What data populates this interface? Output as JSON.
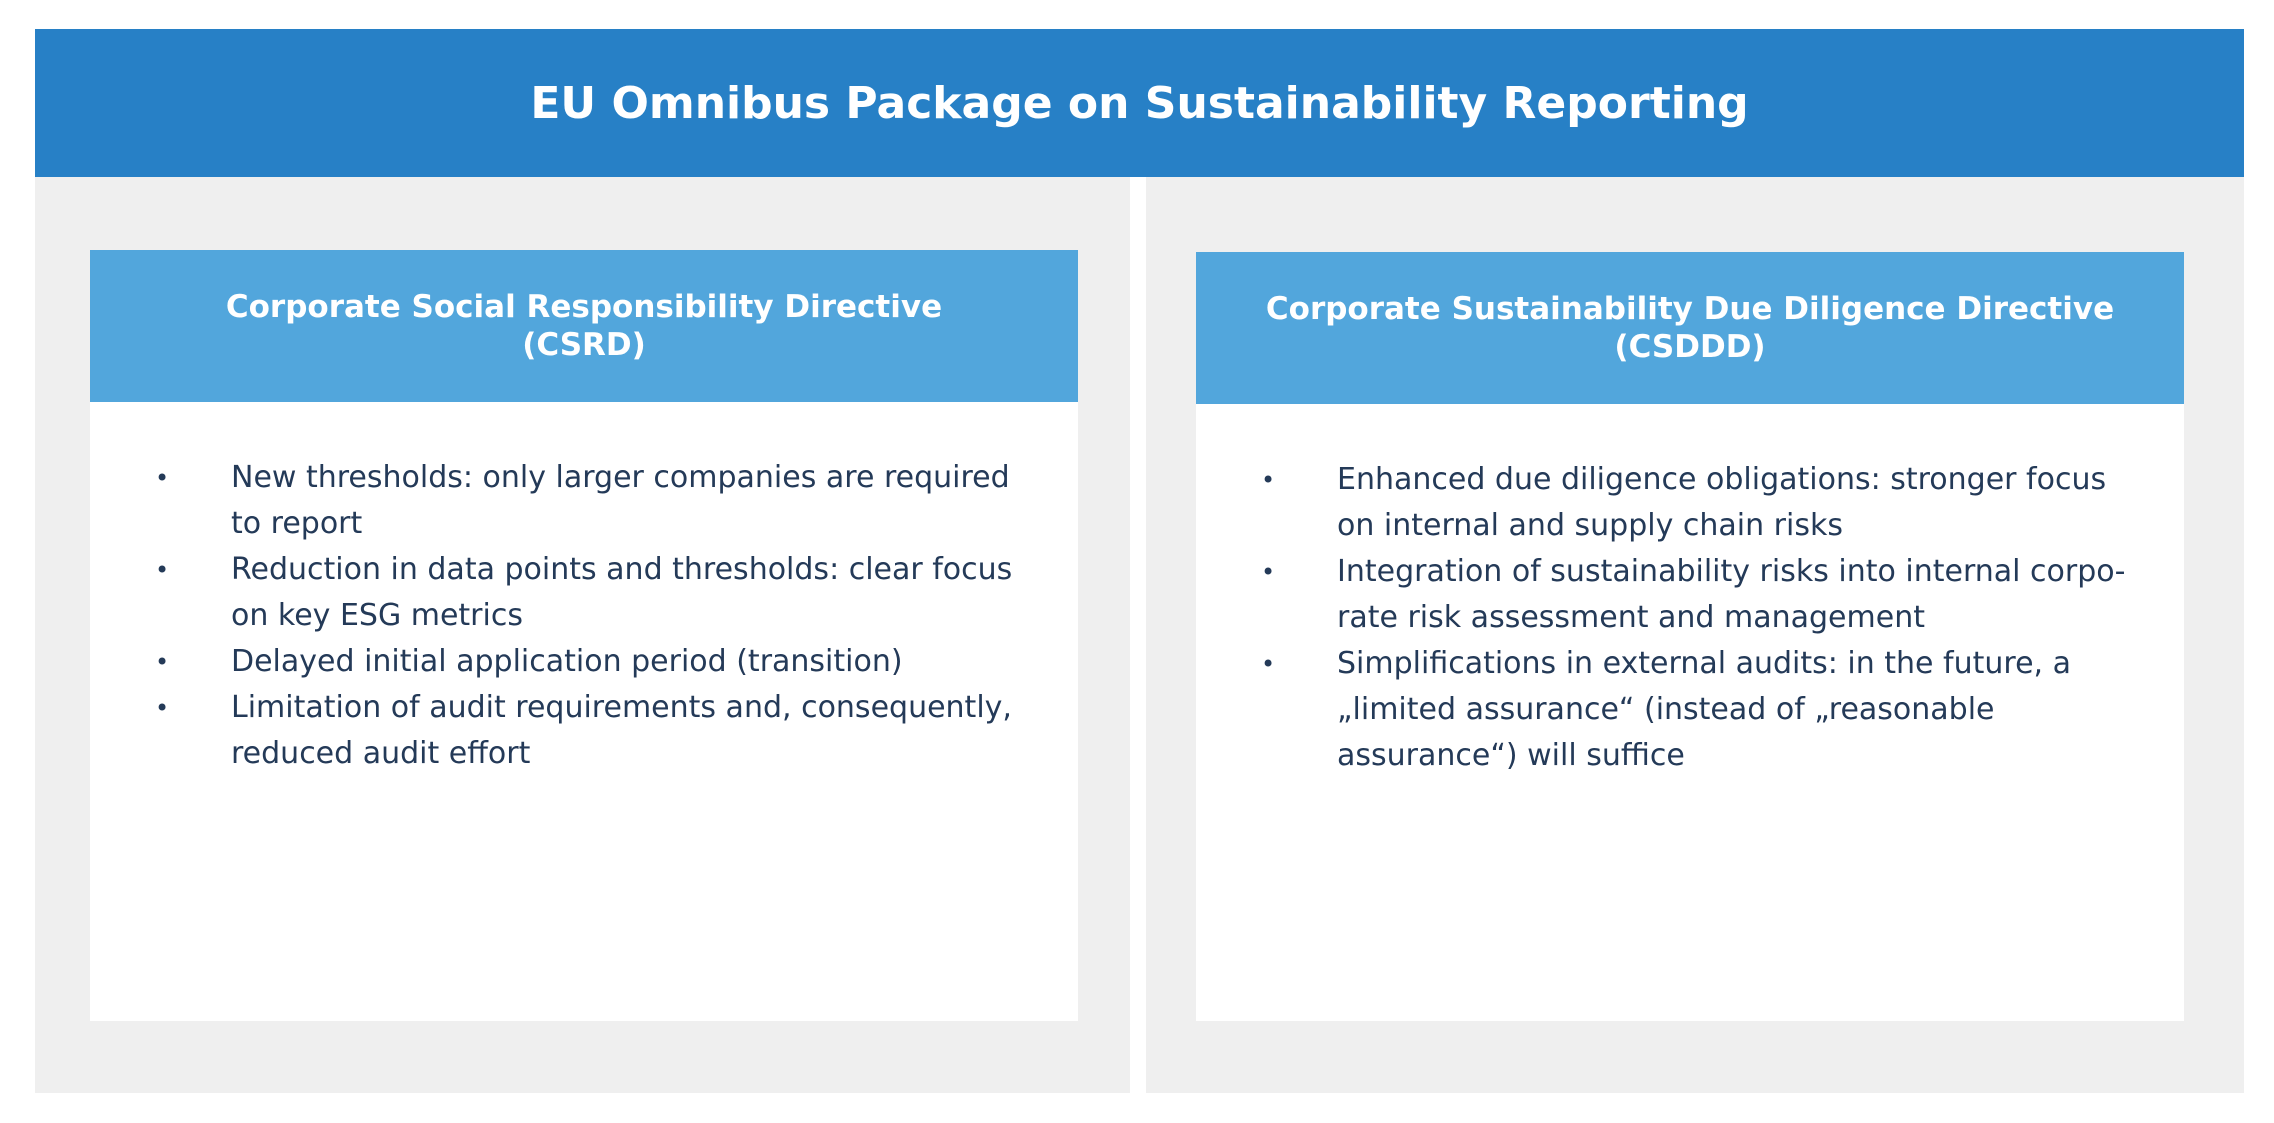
{
  "title": "EU Omnibus Package on Sustainability Reporting",
  "colors": {
    "header_bg": "#2780c6",
    "card_header_bg": "#52a6dc",
    "panel_bg": "#efefef",
    "body_text": "#243a58"
  },
  "panels": [
    {
      "heading_line1": "Corporate Social Responsibility Directive",
      "heading_line2": "(CSRD)",
      "bullet_symbol": "•",
      "bullets": [
        "New thresholds: only larger companies are required to report",
        "Reduction in data points and thresholds: clear focus on key ESG metrics",
        "Delayed initial application period (transition)",
        "Limitation of audit requirements and, consequently, reduced audit effort"
      ]
    },
    {
      "heading_line1": "Corporate Sustainability Due Diligence Directive",
      "heading_line2": "(CSDDD)",
      "bullet_symbol": "•",
      "bullets": [
        "Enhanced due diligence obligations: stronger focus on internal and supply chain risks",
        "Integration of sustainability risks into internal corpo­rate risk assessment and management",
        "Simplifications in external audits: in the future, a „limi­ted assurance“ (instead of „reasonable assurance“) will suffice"
      ]
    }
  ]
}
